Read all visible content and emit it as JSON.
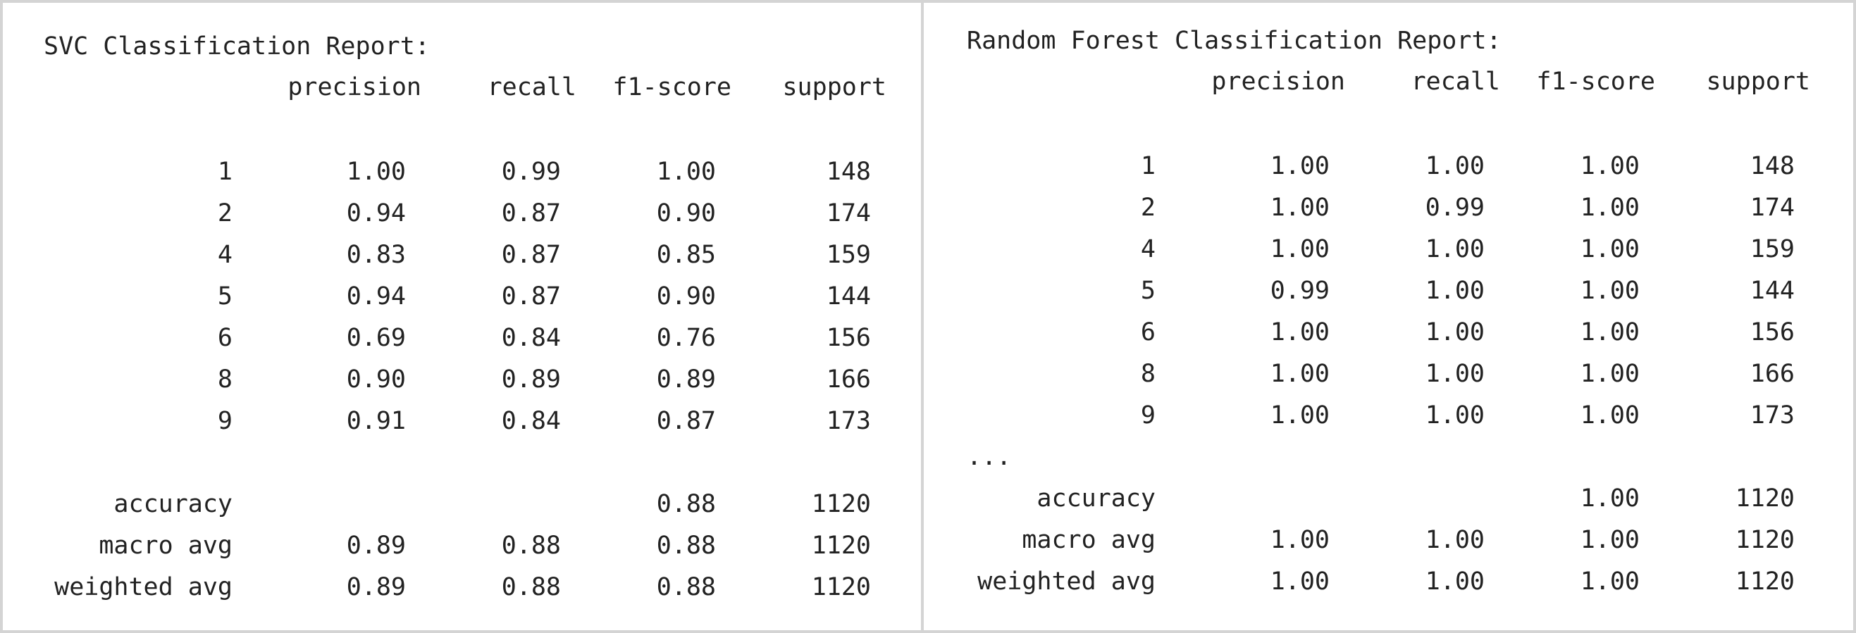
{
  "svc": {
    "title": "SVC Classification Report:",
    "headers": [
      "precision",
      "recall",
      "f1-score",
      "support"
    ],
    "rows": [
      {
        "label": "1",
        "precision": "1.00",
        "recall": "0.99",
        "f1": "1.00",
        "support": "148"
      },
      {
        "label": "2",
        "precision": "0.94",
        "recall": "0.87",
        "f1": "0.90",
        "support": "174"
      },
      {
        "label": "4",
        "precision": "0.83",
        "recall": "0.87",
        "f1": "0.85",
        "support": "159"
      },
      {
        "label": "5",
        "precision": "0.94",
        "recall": "0.87",
        "f1": "0.90",
        "support": "144"
      },
      {
        "label": "6",
        "precision": "0.69",
        "recall": "0.84",
        "f1": "0.76",
        "support": "156"
      },
      {
        "label": "8",
        "precision": "0.90",
        "recall": "0.89",
        "f1": "0.89",
        "support": "166"
      },
      {
        "label": "9",
        "precision": "0.91",
        "recall": "0.84",
        "f1": "0.87",
        "support": "173"
      }
    ],
    "summary": [
      {
        "label": "accuracy",
        "precision": "",
        "recall": "",
        "f1": "0.88",
        "support": "1120"
      },
      {
        "label": "macro avg",
        "precision": "0.89",
        "recall": "0.88",
        "f1": "0.88",
        "support": "1120"
      },
      {
        "label": "weighted avg",
        "precision": "0.89",
        "recall": "0.88",
        "f1": "0.88",
        "support": "1120"
      }
    ]
  },
  "rf": {
    "title": "Random Forest Classification Report:",
    "headers": [
      "precision",
      "recall",
      "f1-score",
      "support"
    ],
    "rows": [
      {
        "label": "1",
        "precision": "1.00",
        "recall": "1.00",
        "f1": "1.00",
        "support": "148"
      },
      {
        "label": "2",
        "precision": "1.00",
        "recall": "0.99",
        "f1": "1.00",
        "support": "174"
      },
      {
        "label": "4",
        "precision": "1.00",
        "recall": "1.00",
        "f1": "1.00",
        "support": "159"
      },
      {
        "label": "5",
        "precision": "0.99",
        "recall": "1.00",
        "f1": "1.00",
        "support": "144"
      },
      {
        "label": "6",
        "precision": "1.00",
        "recall": "1.00",
        "f1": "1.00",
        "support": "156"
      },
      {
        "label": "8",
        "precision": "1.00",
        "recall": "1.00",
        "f1": "1.00",
        "support": "166"
      },
      {
        "label": "9",
        "precision": "1.00",
        "recall": "1.00",
        "f1": "1.00",
        "support": "173"
      }
    ],
    "ellipsis": "...",
    "summary": [
      {
        "label": "accuracy",
        "precision": "",
        "recall": "",
        "f1": "1.00",
        "support": "1120"
      },
      {
        "label": "macro avg",
        "precision": "1.00",
        "recall": "1.00",
        "f1": "1.00",
        "support": "1120"
      },
      {
        "label": "weighted avg",
        "precision": "1.00",
        "recall": "1.00",
        "f1": "1.00",
        "support": "1120"
      }
    ]
  }
}
